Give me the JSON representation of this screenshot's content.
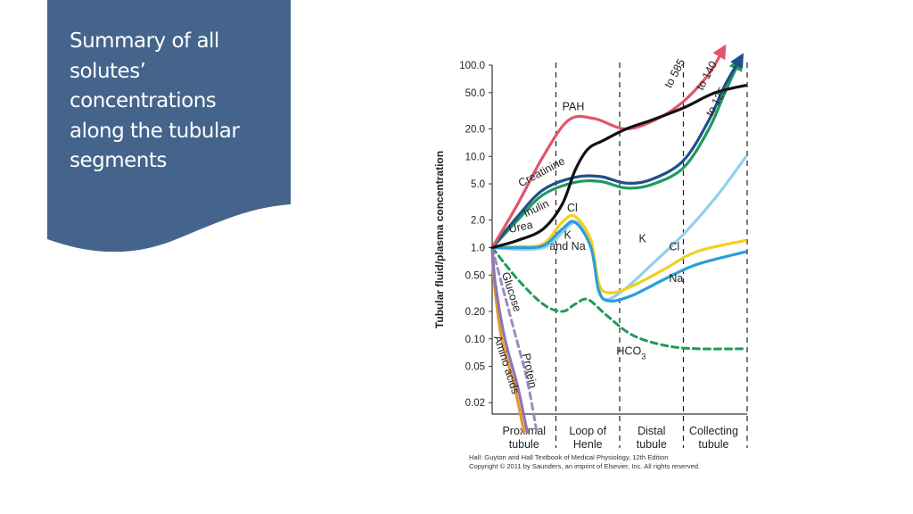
{
  "slide": {
    "title_lines": [
      "Summary of all",
      "solutes’",
      "concentrations",
      "along the tubular",
      "segments"
    ],
    "panel_color": "#44648C"
  },
  "chart_data": {
    "type": "line",
    "ylabel": "Tubular fluid/plasma concentration",
    "yscale": "log",
    "yticks": [
      100.0,
      50.0,
      20.0,
      10.0,
      5.0,
      2.0,
      1.0,
      0.5,
      0.2,
      0.1,
      0.05,
      0.02
    ],
    "ytick_labels": [
      "100.0",
      "50.0",
      "20.0",
      "10.0",
      "5.0",
      "2.0",
      "1.0",
      "0.50",
      "0.20",
      "0.10",
      "0.05",
      "0.02"
    ],
    "ylim": [
      0.015,
      100
    ],
    "segments": [
      {
        "label": "Proximal tubule",
        "lines": [
          "Proximal",
          "tubule"
        ],
        "range": [
          0,
          2
        ]
      },
      {
        "label": "Loop of Henle",
        "lines": [
          "Loop of",
          "Henle"
        ],
        "range": [
          2,
          4
        ]
      },
      {
        "label": "Distal tubule",
        "lines": [
          "Distal",
          "tubule"
        ],
        "range": [
          4,
          6
        ]
      },
      {
        "label": "Collecting tubule",
        "lines": [
          "Collecting",
          "tubule"
        ],
        "range": [
          6,
          7.9
        ]
      }
    ],
    "xlim": [
      0,
      8
    ],
    "grid": false,
    "series": [
      {
        "name": "PAH",
        "color": "#E0566A",
        "arrow": true,
        "points": [
          [
            0,
            1.0
          ],
          [
            0.8,
            3
          ],
          [
            1.6,
            10
          ],
          [
            2.4,
            25
          ],
          [
            3.2,
            26
          ],
          [
            4.2,
            20
          ],
          [
            5.2,
            26
          ],
          [
            6.0,
            40
          ],
          [
            6.8,
            80
          ],
          [
            7.25,
            150
          ]
        ]
      },
      {
        "name": "Creatinine",
        "color": "#1E4E8C",
        "arrow": true,
        "points": [
          [
            0,
            1.0
          ],
          [
            0.8,
            2.2
          ],
          [
            1.6,
            4.3
          ],
          [
            2.6,
            5.9
          ],
          [
            3.4,
            6.0
          ],
          [
            4.2,
            5.1
          ],
          [
            5.0,
            5.6
          ],
          [
            6.0,
            9
          ],
          [
            6.8,
            25
          ],
          [
            7.3,
            60
          ],
          [
            7.8,
            120
          ]
        ]
      },
      {
        "name": "Inulin",
        "color": "#1E9A5A",
        "arrow": true,
        "points": [
          [
            0,
            1.0
          ],
          [
            0.8,
            2.0
          ],
          [
            1.6,
            3.8
          ],
          [
            2.6,
            5.2
          ],
          [
            3.4,
            5.3
          ],
          [
            4.2,
            4.5
          ],
          [
            5.0,
            4.9
          ],
          [
            6.0,
            7.5
          ],
          [
            6.8,
            20
          ],
          [
            7.3,
            50
          ],
          [
            7.75,
            110
          ]
        ]
      },
      {
        "name": "Urea",
        "color": "#111111",
        "arrow": false,
        "points": [
          [
            0,
            1.0
          ],
          [
            0.8,
            1.2
          ],
          [
            1.6,
            1.6
          ],
          [
            2.2,
            3
          ],
          [
            2.6,
            7
          ],
          [
            3.0,
            12
          ],
          [
            3.5,
            15
          ],
          [
            4.2,
            20
          ],
          [
            5.0,
            25
          ],
          [
            6.0,
            34
          ],
          [
            7.0,
            50
          ],
          [
            7.95,
            60
          ]
        ]
      },
      {
        "name": "Cl",
        "color": "#F2CF1E",
        "arrow": false,
        "points": [
          [
            0,
            1.0
          ],
          [
            0.8,
            1.03
          ],
          [
            1.6,
            1.1
          ],
          [
            2.2,
            1.9
          ],
          [
            2.6,
            2.2
          ],
          [
            3.1,
            1.2
          ],
          [
            3.35,
            0.4
          ],
          [
            3.7,
            0.32
          ],
          [
            4.4,
            0.38
          ],
          [
            5.4,
            0.58
          ],
          [
            6.4,
            0.9
          ],
          [
            7.95,
            1.2
          ]
        ]
      },
      {
        "name": "K",
        "color": "#8ED1EC",
        "arrow": false,
        "points": [
          [
            0,
            1.0
          ],
          [
            1.6,
            1.0
          ],
          [
            2.6,
            1.9
          ],
          [
            3.1,
            1.1
          ],
          [
            3.35,
            0.35
          ],
          [
            3.6,
            0.27
          ],
          [
            4.2,
            0.36
          ],
          [
            5.0,
            0.65
          ],
          [
            6.0,
            1.4
          ],
          [
            7.0,
            3.5
          ],
          [
            7.95,
            9.8
          ]
        ]
      },
      {
        "name": "Na",
        "color": "#2A9EDA",
        "arrow": false,
        "points": [
          [
            0,
            1.0
          ],
          [
            0.8,
            1.0
          ],
          [
            1.6,
            1.05
          ],
          [
            2.2,
            1.6
          ],
          [
            2.6,
            1.9
          ],
          [
            3.1,
            1.0
          ],
          [
            3.35,
            0.33
          ],
          [
            3.7,
            0.26
          ],
          [
            4.4,
            0.3
          ],
          [
            5.4,
            0.45
          ],
          [
            6.4,
            0.65
          ],
          [
            7.95,
            0.9
          ]
        ]
      },
      {
        "name": "HCO3",
        "color": "#1F9A5A",
        "dashed": true,
        "arrow": false,
        "points": [
          [
            0,
            1.0
          ],
          [
            0.8,
            0.45
          ],
          [
            1.6,
            0.24
          ],
          [
            2.2,
            0.2
          ],
          [
            2.6,
            0.24
          ],
          [
            3.0,
            0.27
          ],
          [
            3.6,
            0.18
          ],
          [
            4.4,
            0.11
          ],
          [
            5.4,
            0.085
          ],
          [
            6.4,
            0.078
          ],
          [
            7.95,
            0.078
          ]
        ]
      },
      {
        "name": "Amino acids",
        "color": "#E69A28",
        "arrow": false,
        "points": [
          [
            0,
            1.0
          ],
          [
            0.07,
            0.4
          ],
          [
            0.3,
            0.1
          ],
          [
            0.7,
            0.03
          ],
          [
            1.0,
            0.0095
          ]
        ]
      },
      {
        "name": "Glucose",
        "color": "#8A75B5",
        "arrow": false,
        "points": [
          [
            0,
            1.0
          ],
          [
            0.1,
            0.4
          ],
          [
            0.4,
            0.1
          ],
          [
            0.8,
            0.03
          ],
          [
            1.1,
            0.0095
          ]
        ]
      },
      {
        "name": "Protein",
        "color": "#9A8CC0",
        "dashed": true,
        "arrow": false,
        "points": [
          [
            0,
            1.0
          ],
          [
            0.3,
            0.4
          ],
          [
            0.7,
            0.12
          ],
          [
            1.1,
            0.035
          ],
          [
            1.4,
            0.0095
          ]
        ]
      }
    ],
    "annotations": [
      {
        "text": "PAH",
        "x": 2.2,
        "y": 32
      },
      {
        "text": "Creatinine",
        "x": 0.9,
        "y": 4.6,
        "rotate": -28
      },
      {
        "text": "Inulin",
        "x": 1.05,
        "y": 2.15,
        "rotate": -25
      },
      {
        "text": "Urea",
        "x": 0.55,
        "y": 1.45,
        "rotate": -12
      },
      {
        "text": "Cl",
        "x": 2.35,
        "y": 2.5
      },
      {
        "text": "K",
        "x": 2.25,
        "y": 1.25
      },
      {
        "text": "and Na",
        "x": 1.8,
        "y": 0.95
      },
      {
        "text": "K",
        "x": 4.6,
        "y": 1.15
      },
      {
        "text": "Cl",
        "x": 5.55,
        "y": 0.93
      },
      {
        "text": "Na",
        "x": 5.55,
        "y": 0.42
      },
      {
        "text": "HCO3",
        "x": 3.9,
        "y": 0.067
      },
      {
        "text": "Glucose",
        "x": 0.3,
        "y": 0.52,
        "rotate": 72
      },
      {
        "text": "Amino acids",
        "x": 0.05,
        "y": 0.105,
        "rotate": 72
      },
      {
        "text": "Protein",
        "x": 0.95,
        "y": 0.068,
        "rotate": 78
      },
      {
        "text": "to 585",
        "x": 5.6,
        "y": 55,
        "rotate": -62
      },
      {
        "text": "to 140",
        "x": 6.6,
        "y": 52,
        "rotate": -62
      },
      {
        "text": "to 125",
        "x": 6.9,
        "y": 27,
        "rotate": -62
      }
    ],
    "credit_lines": [
      "Hall: Guyton and Hall Textbook of Medical Physiology, 12th Edition",
      "Copyright © 2011 by Saunders, an imprint of Elsevier, Inc. All rights reserved."
    ]
  }
}
